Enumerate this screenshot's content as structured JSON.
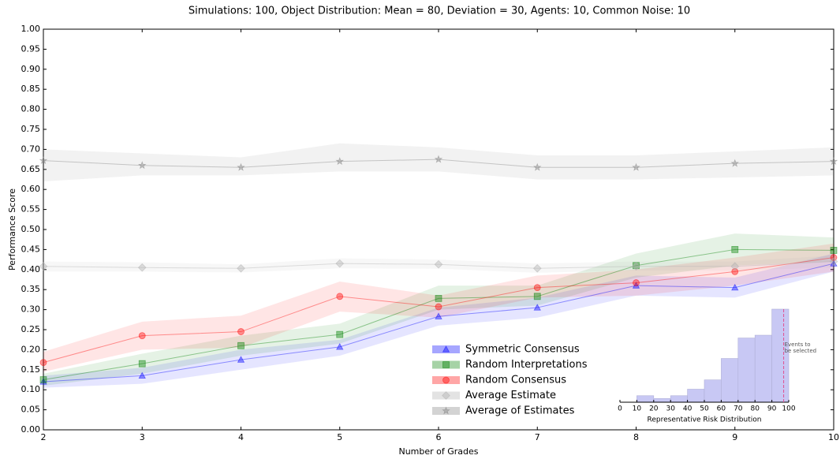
{
  "chart_data": [
    {
      "type": "line",
      "title": "Simulations: 100, Object Distribution: Mean = 80, Deviation = 30, Agents: 10, Common Noise: 10",
      "x_label": "Number of Grades",
      "y_label": "Performance Score",
      "x": [
        2,
        3,
        4,
        5,
        6,
        7,
        8,
        9,
        10
      ],
      "xlim": [
        2,
        10
      ],
      "xticks": [
        2,
        3,
        4,
        5,
        6,
        7,
        8,
        9,
        10
      ],
      "ylim": [
        0,
        1
      ],
      "yticks": [
        {
          "value": 0,
          "label": "0.00"
        },
        {
          "value": 0.05,
          "label": "0.05"
        },
        {
          "value": 0.1,
          "label": "0.10"
        },
        {
          "value": 0.15,
          "label": "0.15"
        },
        {
          "value": 0.2,
          "label": "0.20"
        },
        {
          "value": 0.25,
          "label": "0.25"
        },
        {
          "value": 0.3,
          "label": "0.30"
        },
        {
          "value": 0.35,
          "label": "0.35"
        },
        {
          "value": 0.4,
          "label": "0.40"
        },
        {
          "value": 0.45,
          "label": "0.45"
        },
        {
          "value": 0.5,
          "label": "0.50"
        },
        {
          "value": 0.55,
          "label": "0.55"
        },
        {
          "value": 0.6,
          "label": "0.60"
        },
        {
          "value": 0.65,
          "label": "0.65"
        },
        {
          "value": 0.7,
          "label": "0.70"
        },
        {
          "value": 0.75,
          "label": "0.75"
        },
        {
          "value": 0.8,
          "label": "0.80"
        },
        {
          "value": 0.85,
          "label": "0.85"
        },
        {
          "value": 0.9,
          "label": "0.90"
        },
        {
          "value": 0.95,
          "label": "0.95"
        },
        {
          "value": 1,
          "label": "1.00"
        }
      ],
      "legend": "lower-center",
      "series": [
        {
          "name": "Symmetric Consensus",
          "color": "#0000ff",
          "marker": "triangle",
          "values": [
            0.12,
            0.135,
            0.175,
            0.207,
            0.283,
            0.305,
            0.36,
            0.355,
            0.415
          ],
          "lower": [
            0.105,
            0.115,
            0.15,
            0.185,
            0.26,
            0.28,
            0.335,
            0.33,
            0.395
          ],
          "upper": [
            0.135,
            0.155,
            0.2,
            0.225,
            0.305,
            0.33,
            0.385,
            0.38,
            0.44
          ]
        },
        {
          "name": "Random Interpretations",
          "color": "#008000",
          "marker": "square",
          "values": [
            0.125,
            0.165,
            0.21,
            0.238,
            0.328,
            0.333,
            0.41,
            0.45,
            0.448
          ],
          "lower": [
            0.11,
            0.14,
            0.185,
            0.215,
            0.3,
            0.31,
            0.38,
            0.41,
            0.42
          ],
          "upper": [
            0.14,
            0.19,
            0.235,
            0.265,
            0.36,
            0.36,
            0.44,
            0.49,
            0.48
          ]
        },
        {
          "name": "Random Consensus",
          "color": "#ff0000",
          "marker": "circle",
          "values": [
            0.168,
            0.235,
            0.245,
            0.333,
            0.307,
            0.355,
            0.367,
            0.395,
            0.43
          ],
          "lower": [
            0.145,
            0.2,
            0.205,
            0.295,
            0.28,
            0.33,
            0.335,
            0.36,
            0.395
          ],
          "upper": [
            0.195,
            0.27,
            0.285,
            0.37,
            0.335,
            0.385,
            0.4,
            0.43,
            0.465
          ]
        },
        {
          "name": "Average Estimate",
          "color": "#b0b0b0",
          "marker": "diamond",
          "values": [
            0.408,
            0.405,
            0.403,
            0.415,
            0.413,
            0.403,
            0.408,
            0.408,
            0.42
          ],
          "lower": [
            0.395,
            0.395,
            0.393,
            0.403,
            0.402,
            0.392,
            0.398,
            0.398,
            0.405
          ],
          "upper": [
            0.42,
            0.418,
            0.413,
            0.428,
            0.425,
            0.415,
            0.42,
            0.42,
            0.435
          ]
        },
        {
          "name": "Average of Estimates",
          "color": "#808080",
          "marker": "star",
          "values": [
            0.672,
            0.66,
            0.655,
            0.67,
            0.675,
            0.655,
            0.655,
            0.665,
            0.67
          ],
          "lower": [
            0.62,
            0.635,
            0.635,
            0.645,
            0.645,
            0.625,
            0.625,
            0.63,
            0.635
          ],
          "upper": [
            0.7,
            0.69,
            0.68,
            0.715,
            0.705,
            0.685,
            0.685,
            0.695,
            0.705
          ]
        }
      ]
    },
    {
      "type": "histogram",
      "x_label": "Representative Risk Distribution",
      "bins": [
        0,
        10,
        20,
        30,
        40,
        50,
        60,
        70,
        80,
        90,
        100
      ],
      "values": [
        0,
        7,
        4,
        7,
        14,
        24,
        47,
        69,
        72,
        100
      ],
      "color": "#c8c8f4",
      "xlim": [
        0,
        100
      ],
      "xticks": [
        0,
        10,
        20,
        30,
        40,
        50,
        60,
        70,
        80,
        90,
        100
      ],
      "ylim": [
        0,
        100
      ],
      "threshold": 97,
      "threshold_color": "#e05090",
      "annotation": [
        "Events to",
        "be selected"
      ]
    }
  ]
}
